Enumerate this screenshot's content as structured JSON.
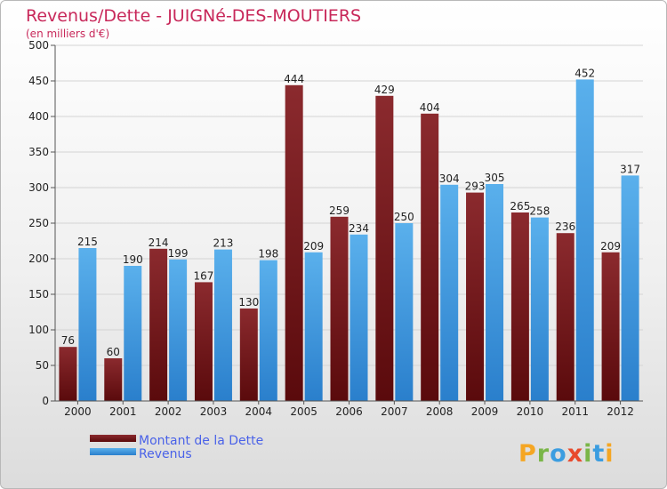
{
  "chart_data": {
    "type": "bar",
    "title": "Revenus/Dette - JUIGNé-DES-MOUTIERS",
    "subtitle": "(en milliers d'€)",
    "categories": [
      "2000",
      "2001",
      "2002",
      "2003",
      "2004",
      "2005",
      "2006",
      "2007",
      "2008",
      "2009",
      "2010",
      "2011",
      "2012"
    ],
    "series": [
      {
        "name": "Montant de la Dette",
        "values": [
          76,
          60,
          214,
          167,
          130,
          444,
          259,
          429,
          404,
          293,
          265,
          236,
          209
        ],
        "color": "#8b1a1a"
      },
      {
        "name": "Revenus",
        "values": [
          215,
          190,
          199,
          213,
          198,
          209,
          234,
          250,
          304,
          305,
          258,
          452,
          317
        ],
        "color": "#3f9be0"
      }
    ],
    "ylim": [
      0,
      500
    ],
    "yticks": [
      0,
      50,
      100,
      150,
      200,
      250,
      300,
      350,
      400,
      450,
      500
    ],
    "grid": true,
    "legend_position": "bottom-left"
  },
  "watermark": {
    "text": "Proxiti"
  }
}
